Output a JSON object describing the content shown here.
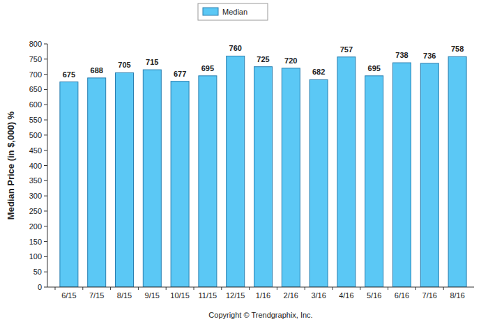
{
  "chart_data": {
    "type": "bar",
    "y_label": "Median Price (in $,000) %",
    "categories": [
      "6/15",
      "7/15",
      "8/15",
      "9/15",
      "10/15",
      "11/15",
      "12/15",
      "1/16",
      "2/16",
      "3/16",
      "4/16",
      "5/16",
      "6/16",
      "7/16",
      "8/16"
    ],
    "series": [
      {
        "name": "Median",
        "color": "#5bc8f5",
        "values": [
          675,
          688,
          705,
          715,
          677,
          695,
          760,
          725,
          720,
          682,
          757,
          695,
          738,
          736,
          758
        ]
      }
    ],
    "ylim": [
      0,
      800
    ],
    "yticks": [
      0,
      50,
      100,
      150,
      200,
      250,
      300,
      350,
      400,
      450,
      500,
      550,
      600,
      650,
      700,
      750,
      800
    ],
    "grid": false,
    "legend": "top",
    "data_labels": true,
    "annotations": [
      "Copyright © Trendgraphix, Inc."
    ]
  }
}
